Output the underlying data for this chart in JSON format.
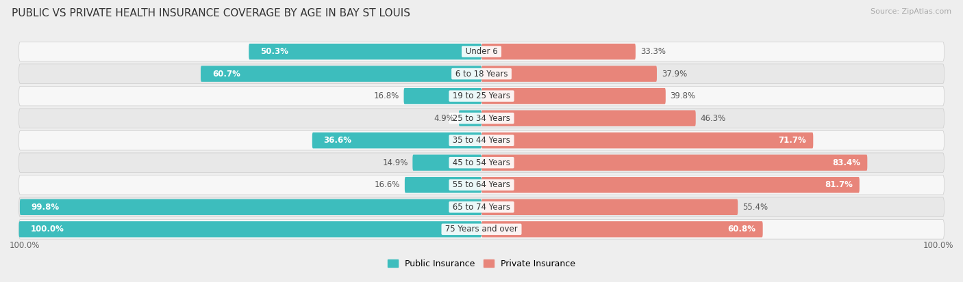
{
  "title": "PUBLIC VS PRIVATE HEALTH INSURANCE COVERAGE BY AGE IN BAY ST LOUIS",
  "source": "Source: ZipAtlas.com",
  "categories": [
    "Under 6",
    "6 to 18 Years",
    "19 to 25 Years",
    "25 to 34 Years",
    "35 to 44 Years",
    "45 to 54 Years",
    "55 to 64 Years",
    "65 to 74 Years",
    "75 Years and over"
  ],
  "public_values": [
    50.3,
    60.7,
    16.8,
    4.9,
    36.6,
    14.9,
    16.6,
    99.8,
    100.0
  ],
  "private_values": [
    33.3,
    37.9,
    39.8,
    46.3,
    71.7,
    83.4,
    81.7,
    55.4,
    60.8
  ],
  "public_color": "#3dbdbd",
  "private_color": "#e8857a",
  "public_label": "Public Insurance",
  "private_label": "Private Insurance",
  "bg_color": "#eeeeee",
  "row_bg_light": "#f7f7f7",
  "row_bg_dark": "#e8e8e8",
  "axis_label": "100.0%",
  "title_fontsize": 11,
  "source_fontsize": 8,
  "label_fontsize": 8.5,
  "category_fontsize": 8.5,
  "value_fontsize": 8.5,
  "legend_fontsize": 9
}
